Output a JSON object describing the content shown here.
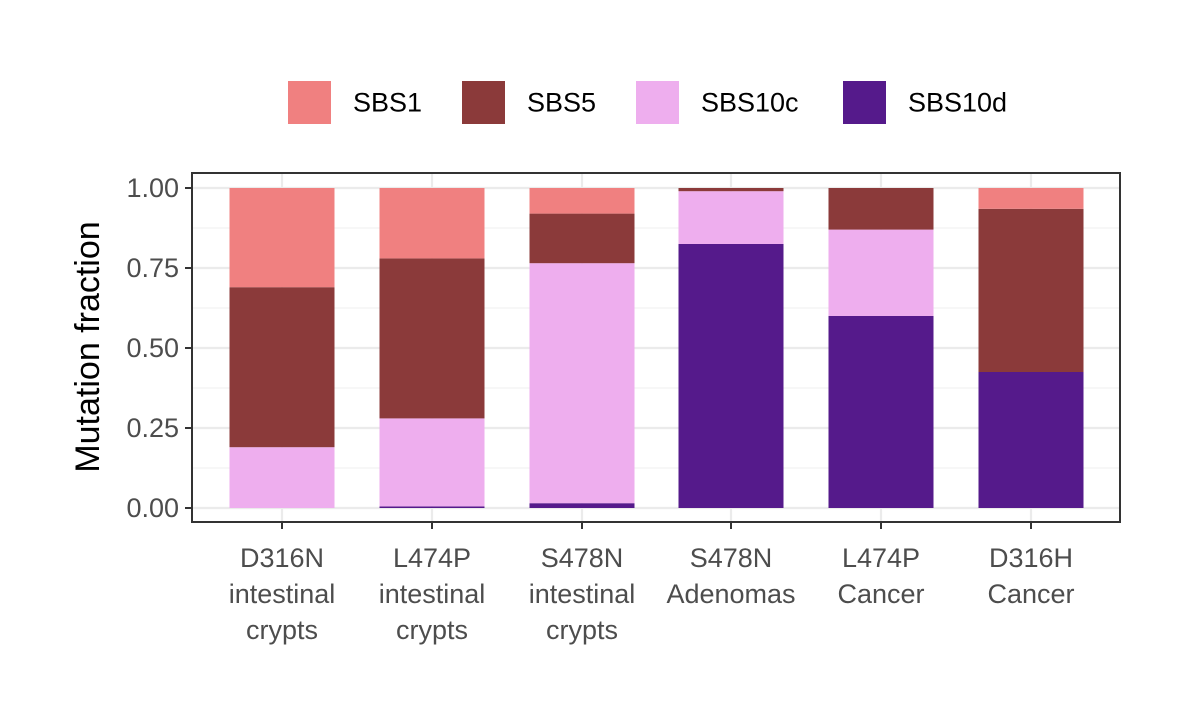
{
  "chart_data": {
    "type": "bar",
    "stacked": true,
    "categories": [
      [
        "D316N",
        "intestinal",
        "crypts"
      ],
      [
        "L474P",
        "intestinal",
        "crypts"
      ],
      [
        "S478N",
        "intestinal",
        "crypts"
      ],
      [
        "S478N",
        "Adenomas"
      ],
      [
        "L474P",
        "Cancer"
      ],
      [
        "D316H",
        "Cancer"
      ]
    ],
    "series": [
      {
        "name": "SBS1",
        "color": "#F08080",
        "values": [
          0.31,
          0.22,
          0.08,
          0.0,
          0.0,
          0.065
        ]
      },
      {
        "name": "SBS5",
        "color": "#8B3A3A",
        "values": [
          0.5,
          0.5,
          0.155,
          0.01,
          0.13,
          0.51
        ]
      },
      {
        "name": "SBS10c",
        "color": "#EEAEEE",
        "values": [
          0.19,
          0.275,
          0.75,
          0.165,
          0.27,
          0.0
        ]
      },
      {
        "name": "SBS10d",
        "color": "#551A8B",
        "values": [
          0.0,
          0.005,
          0.015,
          0.825,
          0.6,
          0.425
        ]
      }
    ],
    "title": "",
    "xlabel": "",
    "ylabel": "Mutation fraction",
    "ylim": [
      0,
      1
    ],
    "yticks": [
      0.0,
      0.25,
      0.5,
      0.75,
      1.0
    ],
    "ytick_labels": [
      "0.00",
      "0.25",
      "0.50",
      "0.75",
      "1.00"
    ],
    "grid": true,
    "legend_position": "top"
  }
}
